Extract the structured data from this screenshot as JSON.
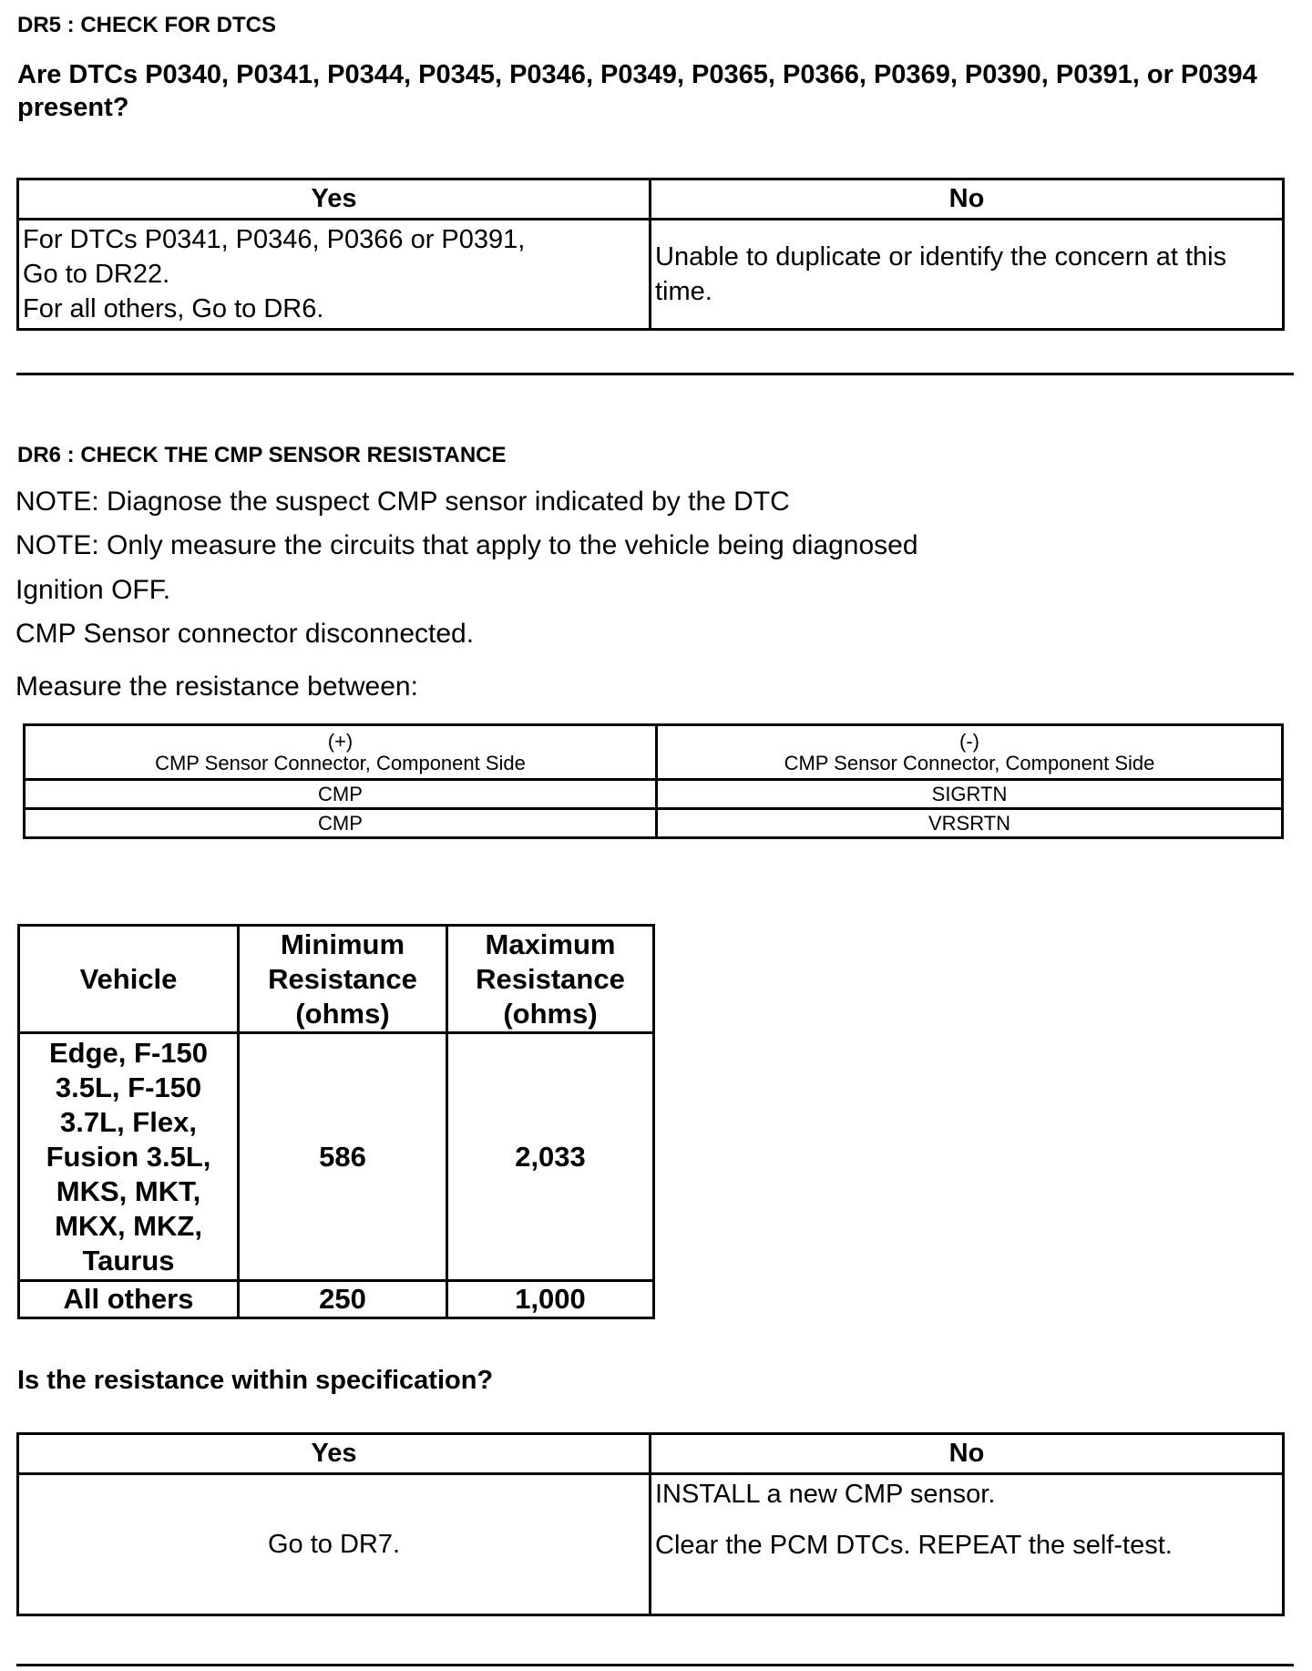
{
  "dr5": {
    "title": "DR5 : CHECK FOR DTCS",
    "question": "Are DTCs P0340, P0341, P0344, P0345, P0346, P0349, P0365, P0366, P0369, P0390, P0391, or P0394 present?",
    "yes_header": "Yes",
    "no_header": "No",
    "yes_lines": [
      "For DTCs P0341, P0346, P0366 or P0391,",
      "Go to DR22.",
      "For all others, Go to DR6."
    ],
    "no_text": "Unable to duplicate or identify the concern at this time."
  },
  "dr6": {
    "title": "DR6 : CHECK THE CMP SENSOR RESISTANCE",
    "notes": [
      "NOTE: Diagnose the suspect CMP sensor indicated by the DTC",
      "NOTE: Only measure the circuits that apply to the vehicle being diagnosed",
      "Ignition OFF.",
      "CMP Sensor connector disconnected."
    ],
    "measure": "Measure the resistance between:",
    "meas_table": {
      "headers": [
        {
          "sign": "(+)",
          "label": "CMP Sensor Connector, Component Side"
        },
        {
          "sign": "(-)",
          "label": "CMP Sensor Connector, Component Side"
        }
      ],
      "rows": [
        [
          "CMP",
          "SIGRTN"
        ],
        [
          "CMP",
          "VRSRTN"
        ]
      ]
    },
    "spec_table": {
      "headers": [
        "Vehicle",
        "Minimum Resistance (ohms)",
        "Maximum Resistance (ohms)"
      ],
      "rows": [
        [
          "Edge, F-150 3.5L, F-150 3.7L, Flex, Fusion 3.5L, MKS, MKT, MKX, MKZ, Taurus",
          "586",
          "2,033"
        ],
        [
          "All others",
          "250",
          "1,000"
        ]
      ]
    },
    "question": "Is the resistance within specification?",
    "yes_header": "Yes",
    "no_header": "No",
    "yes_text": "Go to DR7.",
    "no_lines": [
      "INSTALL a new CMP sensor.",
      "Clear the PCM DTCs. REPEAT the self-test."
    ]
  }
}
